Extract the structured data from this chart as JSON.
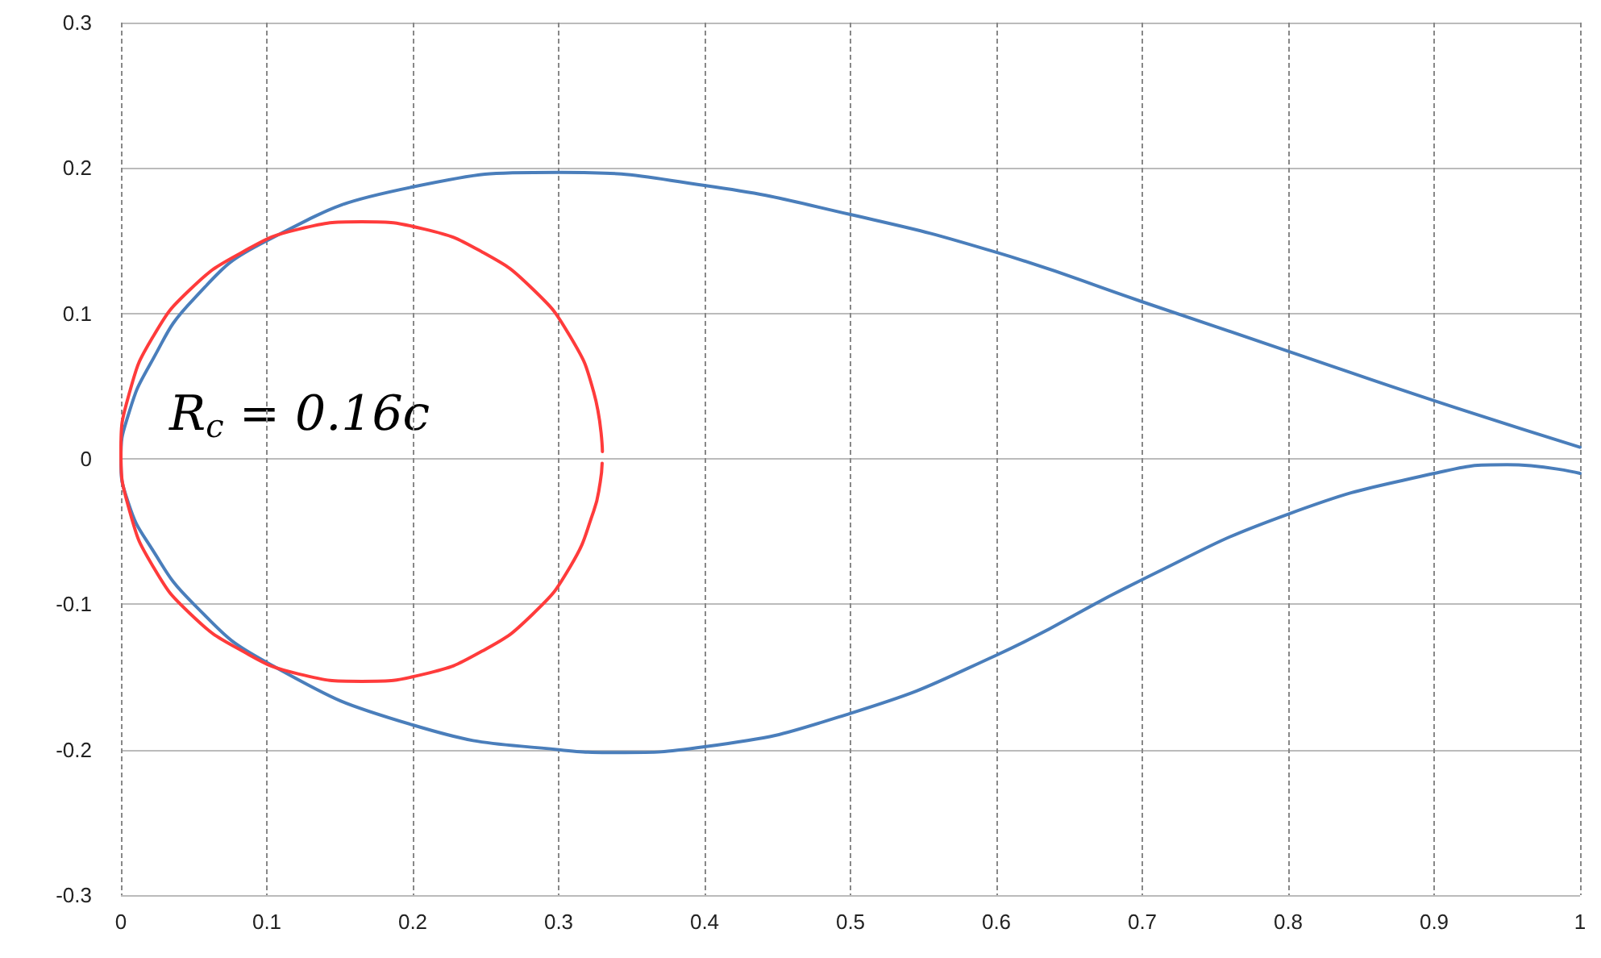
{
  "chart_data": {
    "type": "line",
    "xlim": [
      0,
      1
    ],
    "xticks": [
      0,
      0.1,
      0.2,
      0.3,
      0.4,
      0.5,
      0.6,
      0.7,
      0.8,
      0.9,
      1
    ],
    "ylim": [
      -0.3,
      0.3
    ],
    "yticks": [
      -0.3,
      -0.2,
      -0.1,
      0,
      0.1,
      0.2,
      0.3
    ],
    "grid": true,
    "marker": "none",
    "line_style": "solid",
    "annotations": [
      "R$_{c}$ = 0.16c"
    ],
    "series": [
      {
        "color": "#4a7ebb",
        "x": [
          1,
          0.9,
          0.8,
          0.7,
          0.6,
          0.5,
          0.4,
          0.3,
          0.2,
          0.1,
          0.05,
          0.02,
          0.005,
          0,
          0.005,
          0.02,
          0.05,
          0.1,
          0.2,
          0.3,
          0.34,
          0.4,
          0.5,
          0.6,
          0.7,
          0.8,
          0.9,
          0.95,
          1
        ],
        "values": [
          0.008,
          0.04,
          0.074,
          0.108,
          0.142,
          0.168,
          0.188,
          0.197,
          0.187,
          0.15,
          0.11,
          0.065,
          0.03,
          0,
          -0.03,
          -0.06,
          -0.1,
          -0.14,
          -0.183,
          -0.2,
          -0.202,
          -0.198,
          -0.175,
          -0.135,
          -0.083,
          -0.038,
          -0.01,
          -0.004,
          -0.01
        ]
      },
      {
        "color": "#ff3b3b",
        "x": [
          0.33,
          0.324,
          0.308,
          0.282,
          0.248,
          0.208,
          0.165,
          0.122,
          0.083,
          0.048,
          0.022,
          0.006,
          0,
          0.006,
          0.022,
          0.048,
          0.083,
          0.122,
          0.165,
          0.208,
          0.248,
          0.282,
          0.308,
          0.324,
          0.3285,
          0.3298
        ],
        "values": [
          0.005,
          0.046,
          0.084,
          0.117,
          0.142,
          0.158,
          0.163,
          0.158,
          0.142,
          0.117,
          0.084,
          0.046,
          0.005,
          -0.036,
          -0.074,
          -0.107,
          -0.132,
          -0.148,
          -0.153,
          -0.148,
          -0.132,
          -0.107,
          -0.074,
          -0.036,
          -0.016,
          -0.003
        ]
      }
    ]
  }
}
